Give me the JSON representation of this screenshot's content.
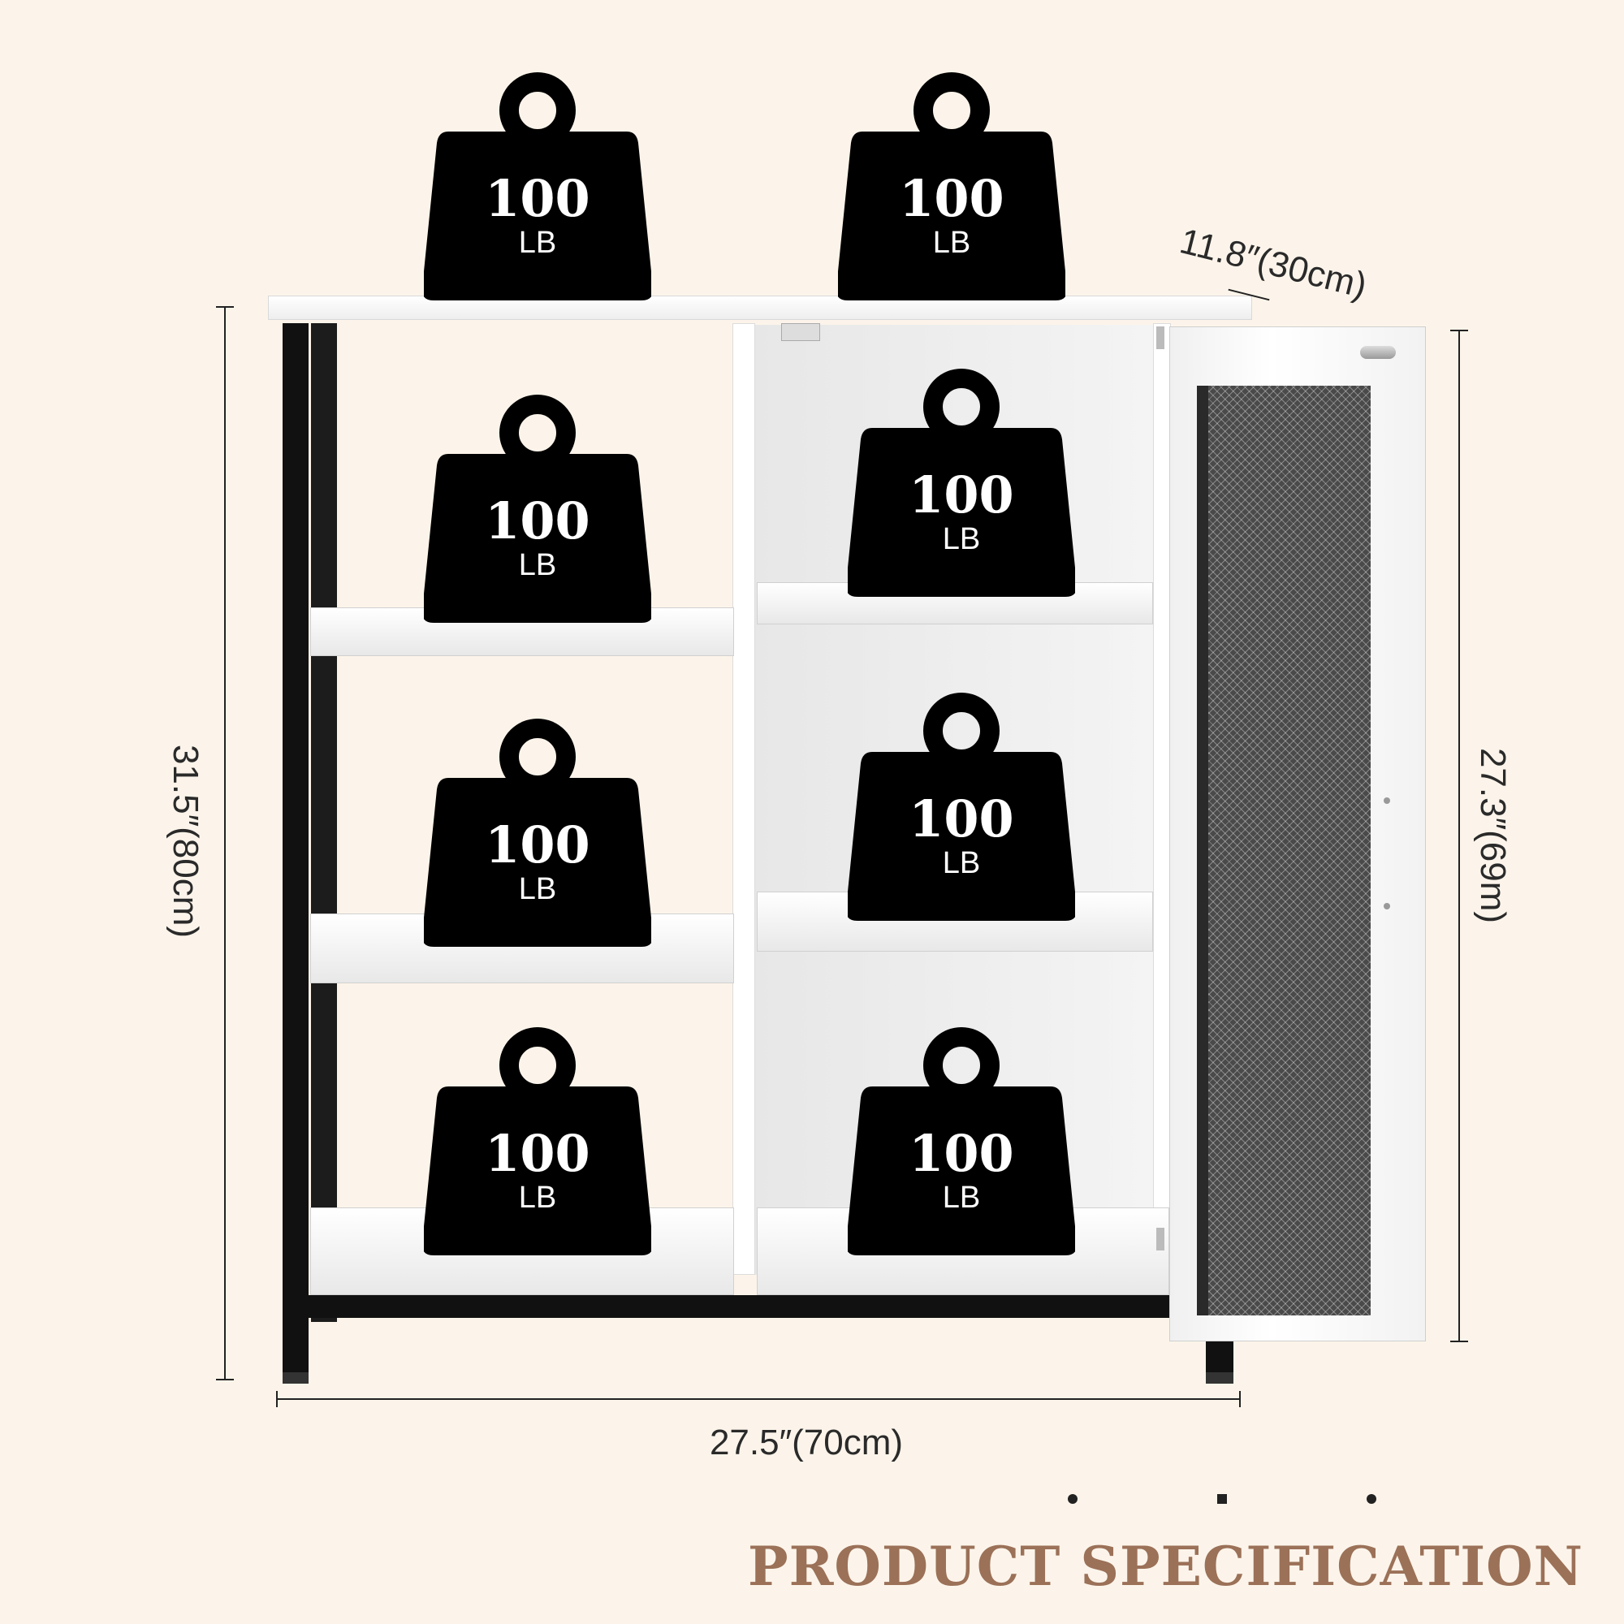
{
  "dimensions": {
    "depth": "11.8″(30cm)",
    "height_total": "31.5″(80cm)",
    "height_door": "27.3″(69m)",
    "width": "27.5″(70cm)"
  },
  "weights": [
    {
      "value": "100",
      "unit": "LB"
    },
    {
      "value": "100",
      "unit": "LB"
    },
    {
      "value": "100",
      "unit": "LB"
    },
    {
      "value": "100",
      "unit": "LB"
    },
    {
      "value": "100",
      "unit": "LB"
    },
    {
      "value": "100",
      "unit": "LB"
    },
    {
      "value": "100",
      "unit": "LB"
    },
    {
      "value": "100",
      "unit": "LB"
    }
  ],
  "footer": {
    "title": "PRODUCT SPECIFICATION"
  },
  "colors": {
    "background": "#fcf4ea",
    "weight_fill": "#000000",
    "title": "#9b7158",
    "frame": "#111111"
  }
}
